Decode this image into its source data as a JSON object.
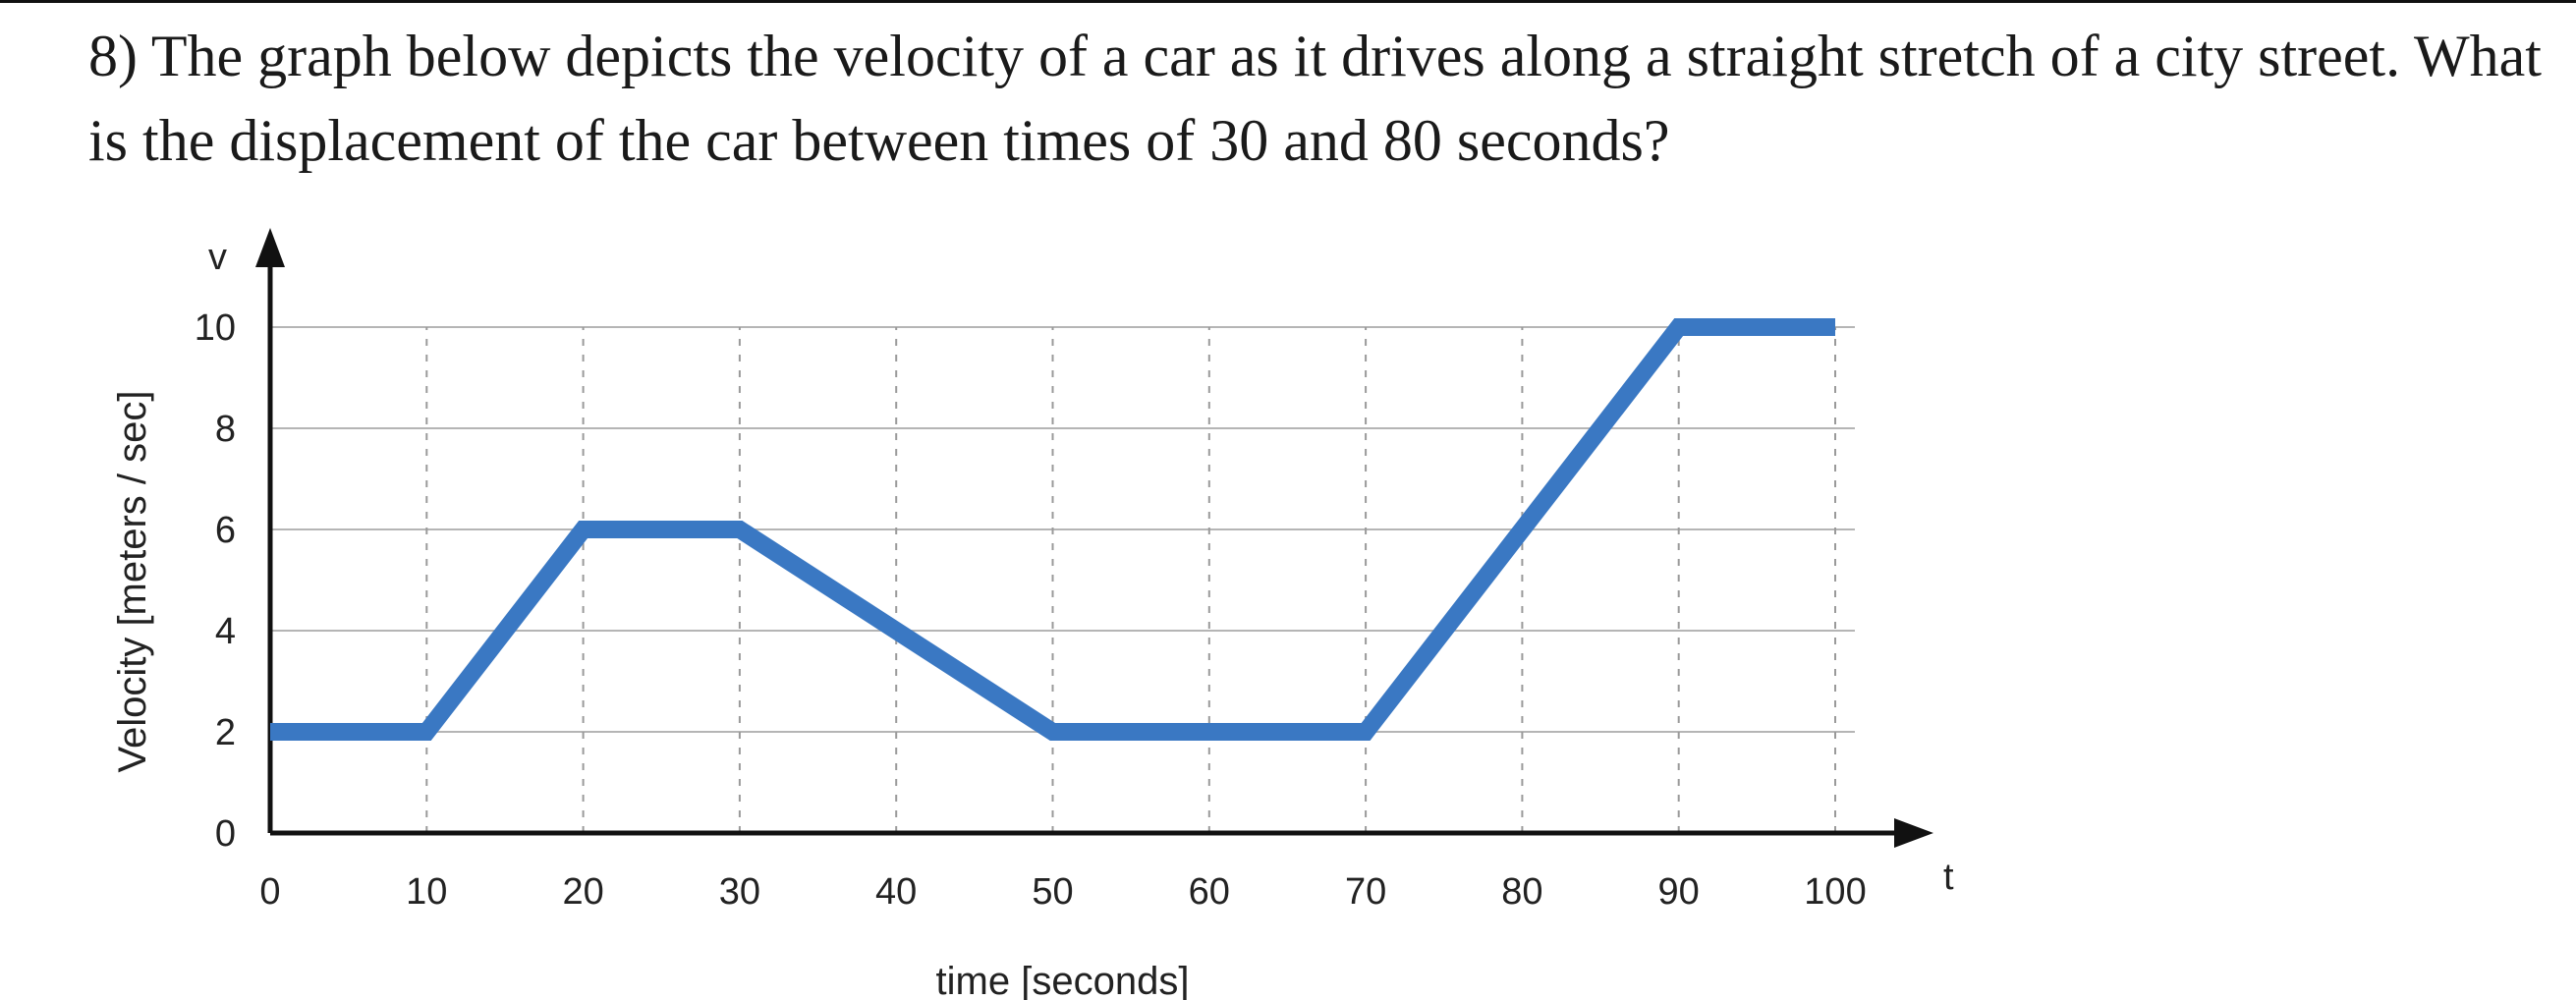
{
  "question": {
    "text": "8) The graph below depicts the velocity of a car as it drives along a straight stretch of a city street. What is the displacement of the car between times of 30 and 80 seconds?"
  },
  "chart_data": {
    "type": "line",
    "title": "",
    "xlabel": "time [seconds]",
    "ylabel": "Velocity [meters / sec]",
    "x_axis_symbol": "t",
    "y_axis_symbol": "v",
    "xlim": [
      0,
      100
    ],
    "ylim": [
      0,
      10
    ],
    "x_ticks": [
      0,
      10,
      20,
      30,
      40,
      50,
      60,
      70,
      80,
      90,
      100
    ],
    "y_ticks": [
      0,
      2,
      4,
      6,
      8,
      10
    ],
    "grid": true,
    "line_color": "#3a78c3",
    "series": [
      {
        "x": [
          0,
          10,
          20,
          30,
          50,
          70,
          90,
          100
        ],
        "y": [
          2,
          2,
          6,
          6,
          2,
          2,
          10,
          10
        ]
      }
    ]
  }
}
